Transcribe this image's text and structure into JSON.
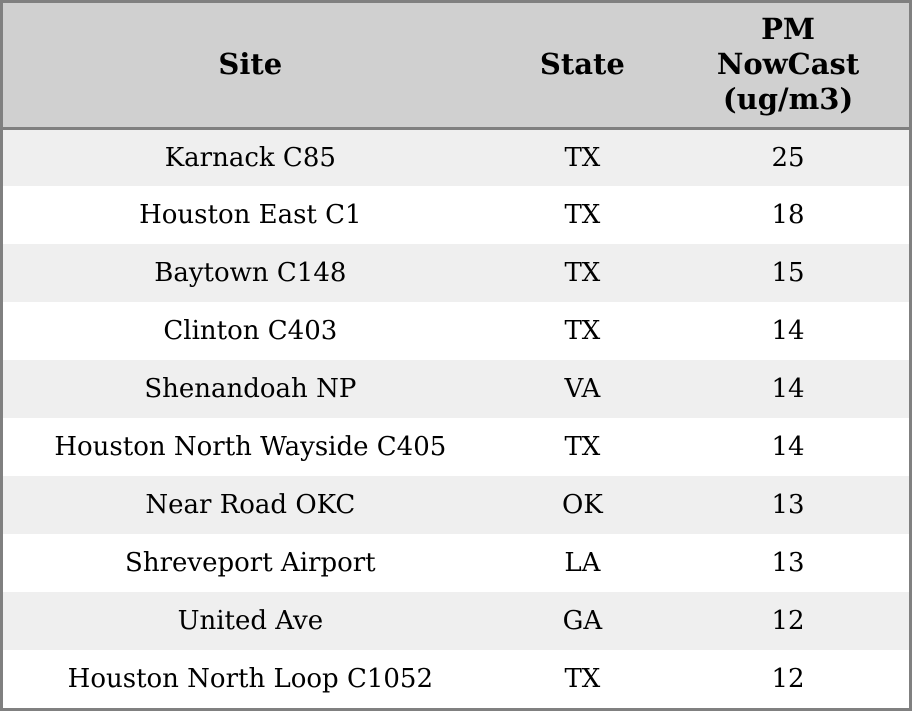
{
  "chart_data": {
    "type": "table",
    "title": "",
    "columns": [
      "Site",
      "State",
      "PM NowCast (ug/m3)"
    ],
    "rows": [
      [
        "Karnack C85",
        "TX",
        25
      ],
      [
        "Houston East C1",
        "TX",
        18
      ],
      [
        "Baytown C148",
        "TX",
        15
      ],
      [
        "Clinton C403",
        "TX",
        14
      ],
      [
        "Shenandoah NP",
        "VA",
        14
      ],
      [
        "Houston North Wayside C405",
        "TX",
        14
      ],
      [
        "Near Road OKC",
        "OK",
        13
      ],
      [
        "Shreveport Airport",
        "LA",
        13
      ],
      [
        "United Ave",
        "GA",
        12
      ],
      [
        "Houston North Loop C1052",
        "TX",
        12
      ]
    ],
    "layout": {
      "grid": false,
      "row_striping": true,
      "header_position": "top"
    }
  },
  "table": {
    "headers": {
      "site": "Site",
      "state": "State",
      "pm": "PM\nNowCast\n(ug/m3)"
    },
    "colors": {
      "header_bg": "#d0d0d0",
      "border": "#808080",
      "row_alt_bg": "#efefef",
      "row_bg": "#ffffff",
      "text": "#000000"
    }
  }
}
